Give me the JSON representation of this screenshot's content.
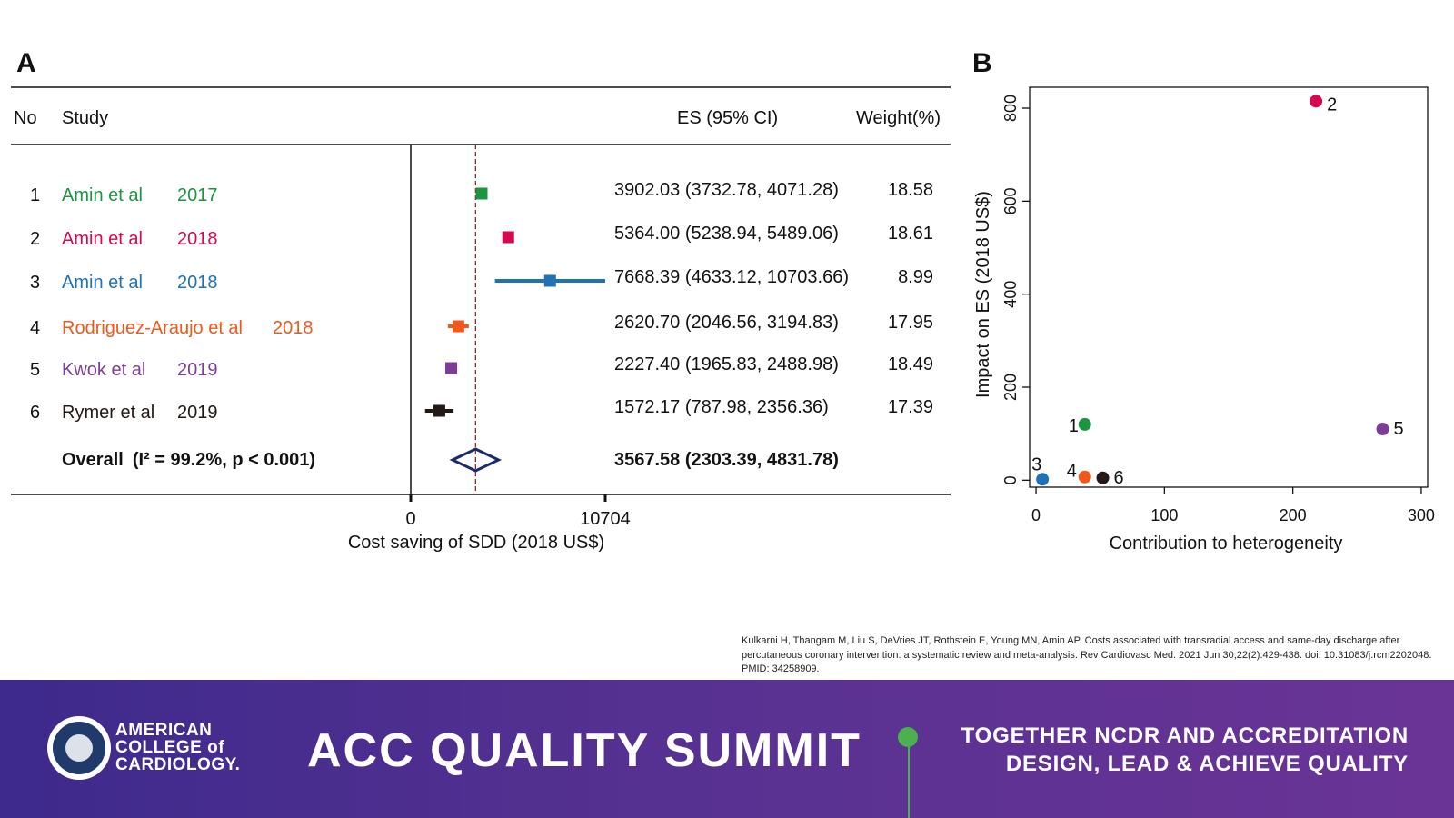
{
  "panel_a": {
    "label": "A",
    "headers": {
      "no": "No",
      "study": "Study",
      "es": "ES (95% CI)",
      "weight": "Weight(%)"
    },
    "overall": {
      "label": "Overall",
      "stat": "(I² = 99.2%, p < 0.001)",
      "es_text": "3567.58 (2303.39, 4831.78)"
    },
    "xlabel": "Cost saving of SDD (2018 US$)"
  },
  "panel_b": {
    "label": "B"
  },
  "chart_data": [
    {
      "type": "forest",
      "rows": [
        {
          "no": "1",
          "study": "Amin et al",
          "year": "2017",
          "es": 3902.03,
          "lo": 3732.78,
          "hi": 4071.28,
          "es_text": "3902.03 (3732.78, 4071.28)",
          "weight": "18.58",
          "color": "#1a9641"
        },
        {
          "no": "2",
          "study": "Amin et al",
          "year": "2018",
          "es": 5364.0,
          "lo": 5238.94,
          "hi": 5489.06,
          "es_text": "5364.00 (5238.94, 5489.06)",
          "weight": "18.61",
          "color": "#d6094f"
        },
        {
          "no": "3",
          "study": "Amin et al",
          "year": "2018",
          "es": 7668.39,
          "lo": 4633.12,
          "hi": 10703.66,
          "es_text": "7668.39 (4633.12, 10703.66)",
          "weight": "8.99",
          "color": "#1f72b8"
        },
        {
          "no": "4",
          "study": "Rodriguez-Araujo et al",
          "year": "2018",
          "es": 2620.7,
          "lo": 2046.56,
          "hi": 3194.83,
          "es_text": "2620.70 (2046.56, 3194.83)",
          "weight": "17.95",
          "color": "#f0591b"
        },
        {
          "no": "5",
          "study": "Kwok et al",
          "year": "2019",
          "es": 2227.4,
          "lo": 1965.83,
          "hi": 2488.98,
          "es_text": "2227.40 (1965.83, 2488.98)",
          "weight": "18.49",
          "color": "#7d3c98"
        },
        {
          "no": "6",
          "study": "Rymer et al",
          "year": "2019",
          "es": 1572.17,
          "lo": 787.98,
          "hi": 2356.36,
          "es_text": "1572.17 (787.98, 2356.36)",
          "weight": "17.39",
          "color": "#231815"
        }
      ],
      "overall": {
        "es": 3567.58,
        "lo": 2303.39,
        "hi": 4831.78
      },
      "xticks": [
        0,
        10704
      ],
      "xlabel": "Cost saving of SDD (2018 US$)"
    },
    {
      "type": "scatter",
      "points": [
        {
          "label": "1",
          "x": 38,
          "y": 120,
          "color": "#1a9641"
        },
        {
          "label": "2",
          "x": 218,
          "y": 815,
          "color": "#d6094f"
        },
        {
          "label": "3",
          "x": 5,
          "y": 2,
          "color": "#1f72b8"
        },
        {
          "label": "4",
          "x": 38,
          "y": 7,
          "color": "#f0591b"
        },
        {
          "label": "5",
          "x": 270,
          "y": 110,
          "color": "#7d3c98"
        },
        {
          "label": "6",
          "x": 52,
          "y": 5,
          "color": "#231815"
        }
      ],
      "xlim": [
        -5,
        305
      ],
      "ylim": [
        -15,
        845
      ],
      "xticks": [
        0,
        100,
        200,
        300
      ],
      "yticks": [
        0,
        200,
        400,
        600,
        800
      ],
      "xlabel": "Contribution to heterogeneity",
      "ylabel": "Impact on ES (2018 US$)"
    }
  ],
  "citation": "Kulkarni H, Thangam M, Liu S, DeVries JT, Rothstein E, Young MN, Amin AP. Costs associated with transradial access and same-day discharge after percutaneous coronary intervention: a systematic review and meta-analysis. Rev Cardiovasc Med. 2021 Jun 30;22(2):429-438. doi: 10.31083/j.rcm2202048. PMID: 34258909.",
  "footer": {
    "org_lines": [
      "AMERICAN",
      "COLLEGE of",
      "CARDIOLOGY."
    ],
    "summit": "ACC QUALITY SUMMIT",
    "tagline_lines": [
      "TOGETHER NCDR AND ACCREDITATION",
      "DESIGN, LEAD & ACHIEVE QUALITY"
    ]
  }
}
